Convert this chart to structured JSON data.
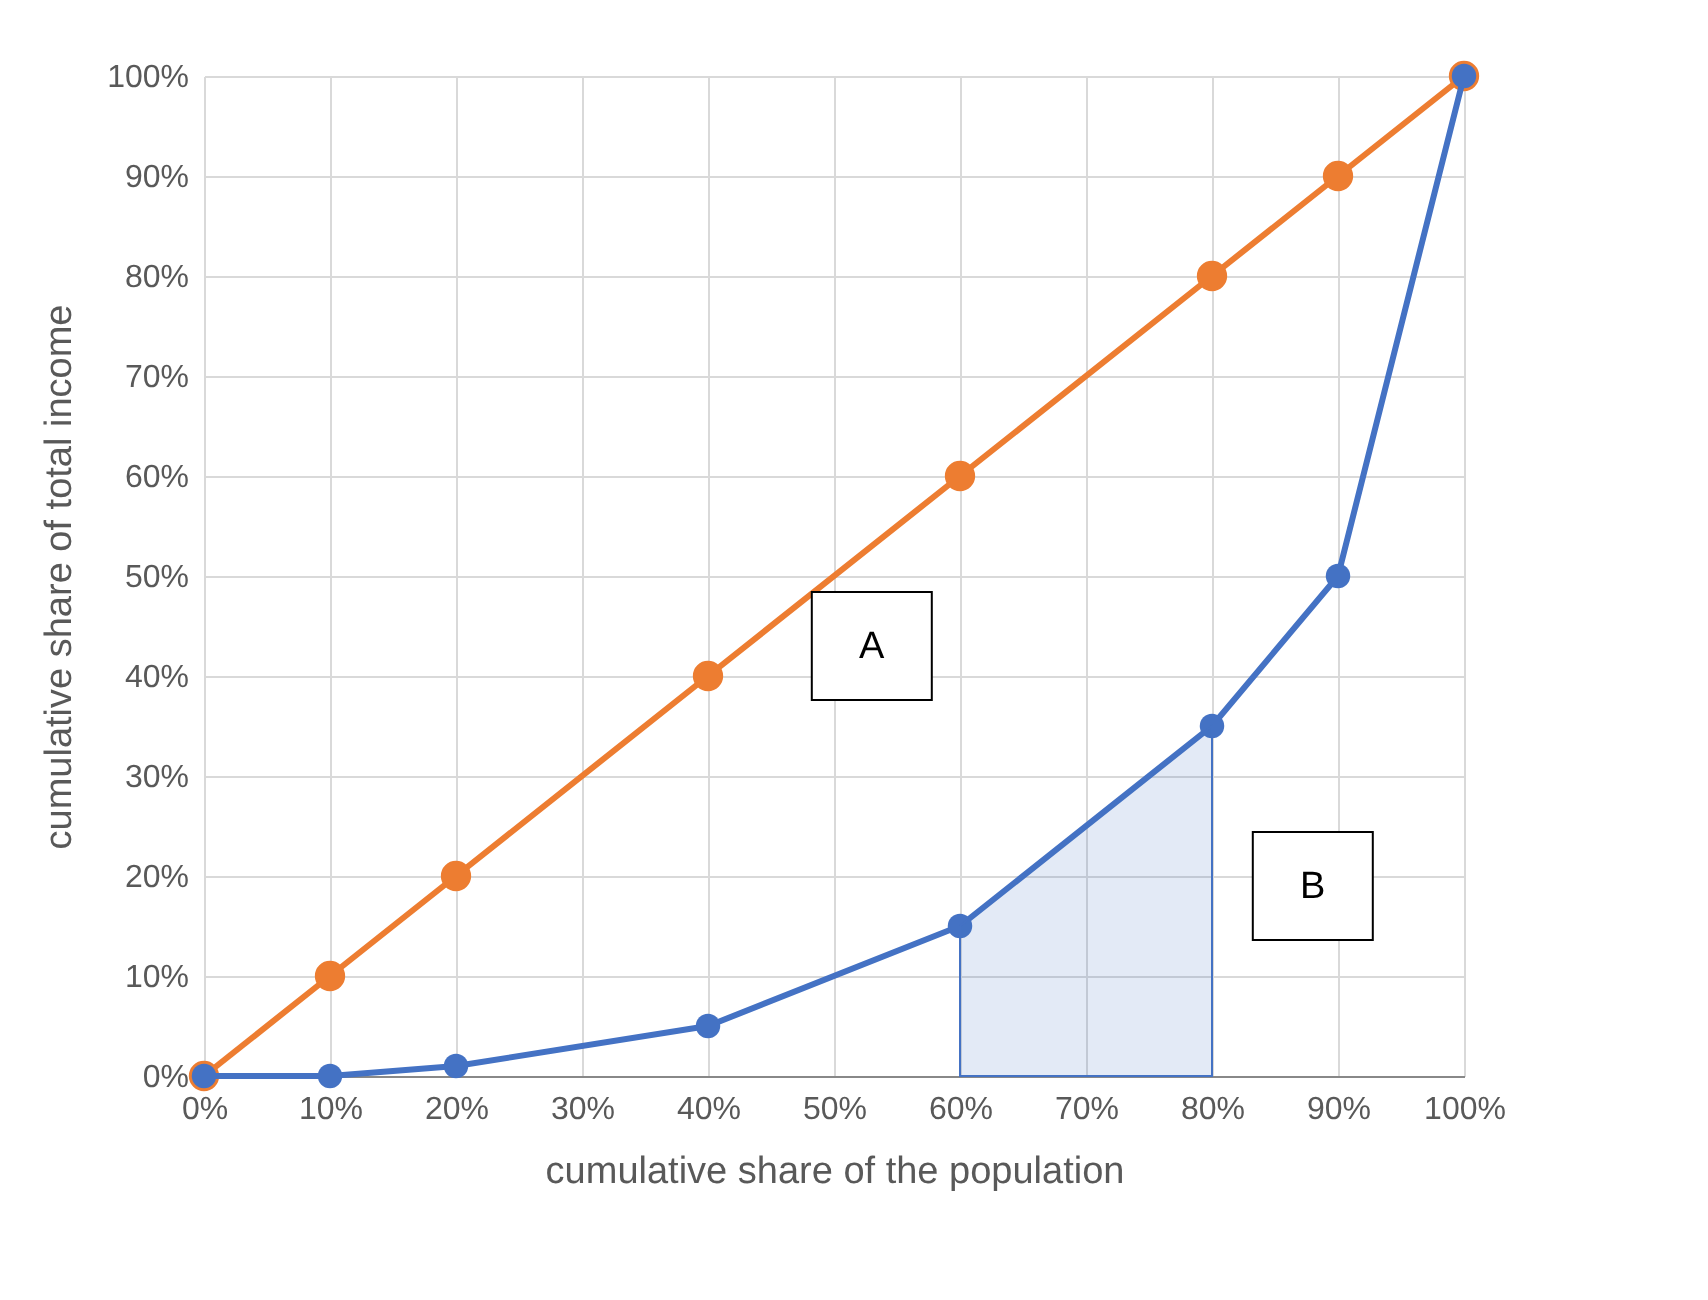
{
  "chart_data": {
    "type": "line",
    "xlabel": "cumulative share of the population",
    "ylabel": "cumulative share of total  income",
    "x": [
      0,
      10,
      20,
      40,
      60,
      80,
      90,
      100
    ],
    "series": [
      {
        "color": "#ed7d31",
        "values": [
          0,
          10,
          20,
          40,
          60,
          80,
          90,
          100
        ]
      },
      {
        "color": "#4472c4",
        "values": [
          0,
          0,
          1,
          5,
          15,
          35,
          50,
          100
        ]
      },
      {
        "type": "area",
        "color": "#4472c4",
        "x": [
          60,
          80
        ],
        "values": [
          15,
          35
        ],
        "marker": "none"
      }
    ],
    "xlim": [
      0,
      100
    ],
    "ylim": [
      0,
      100
    ],
    "xticks": [
      {
        "value": 0,
        "label": "0%"
      },
      {
        "value": 10,
        "label": "10%"
      },
      {
        "value": 20,
        "label": "20%"
      },
      {
        "value": 30,
        "label": "30%"
      },
      {
        "value": 40,
        "label": "40%"
      },
      {
        "value": 50,
        "label": "50%"
      },
      {
        "value": 60,
        "label": "60%"
      },
      {
        "value": 70,
        "label": "70%"
      },
      {
        "value": 80,
        "label": "80%"
      },
      {
        "value": 90,
        "label": "90%"
      },
      {
        "value": 100,
        "label": "100%"
      }
    ],
    "yticks": [
      {
        "value": 0,
        "label": "0%"
      },
      {
        "value": 10,
        "label": "10%"
      },
      {
        "value": 20,
        "label": "20%"
      },
      {
        "value": 30,
        "label": "30%"
      },
      {
        "value": 40,
        "label": "40%"
      },
      {
        "value": 50,
        "label": "50%"
      },
      {
        "value": 60,
        "label": "60%"
      },
      {
        "value": 70,
        "label": "70%"
      },
      {
        "value": 80,
        "label": "80%"
      },
      {
        "value": 90,
        "label": "90%"
      },
      {
        "value": 100,
        "label": "100%"
      }
    ],
    "annotations": [
      "A",
      "B"
    ],
    "grid": true,
    "marker": "circle",
    "line_style": "solid"
  }
}
